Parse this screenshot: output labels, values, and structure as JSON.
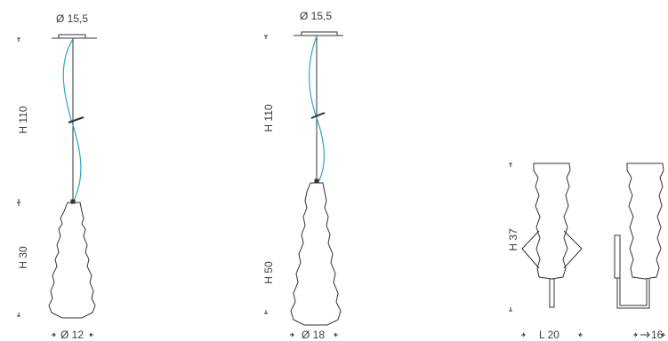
{
  "products": [
    {
      "name": "",
      "diameter_top": "Ø 15,5",
      "height_total": "H 110",
      "height_shade": "H 30",
      "diameter_bottom": "Ø 12"
    },
    {
      "name": "",
      "diameter_top": "Ø 15,5",
      "height_total": "H 110",
      "height_shade": "H 50",
      "diameter_bottom": "Ø 18"
    },
    {
      "name": "",
      "height": "H 37",
      "length": "L 20",
      "depth": "16"
    }
  ],
  "colors": {
    "line": "#333333",
    "cable": "#2aa7c9",
    "text": "#3a3a3a"
  }
}
